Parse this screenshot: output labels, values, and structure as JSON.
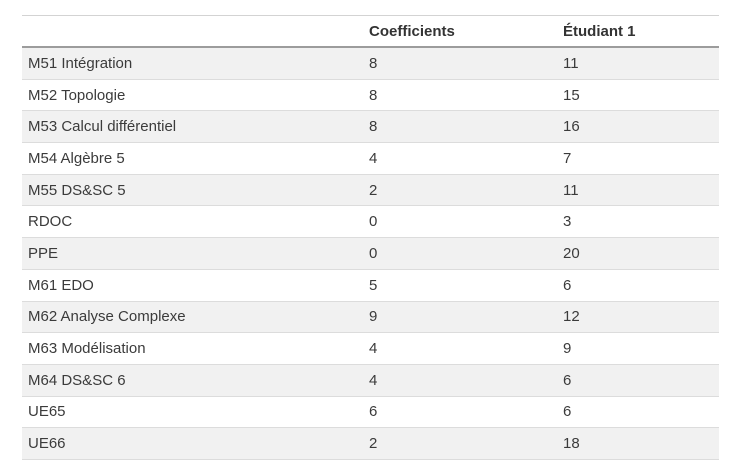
{
  "table": {
    "header": {
      "subject": "",
      "coefficients": "Coefficients",
      "etudiant1": "Étudiant 1"
    },
    "rows": [
      {
        "subject": "M51 Intégration",
        "coefficients": "8",
        "etudiant1": "11"
      },
      {
        "subject": "M52 Topologie",
        "coefficients": "8",
        "etudiant1": "15"
      },
      {
        "subject": "M53 Calcul différentiel",
        "coefficients": "8",
        "etudiant1": "16"
      },
      {
        "subject": "M54 Algèbre 5",
        "coefficients": "4",
        "etudiant1": "7"
      },
      {
        "subject": "M55 DS&SC 5",
        "coefficients": "2",
        "etudiant1": "11"
      },
      {
        "subject": "RDOC",
        "coefficients": "0",
        "etudiant1": "3"
      },
      {
        "subject": "PPE",
        "coefficients": "0",
        "etudiant1": "20"
      },
      {
        "subject": "M61 EDO",
        "coefficients": "5",
        "etudiant1": "6"
      },
      {
        "subject": "M62 Analyse Complexe",
        "coefficients": "9",
        "etudiant1": "12"
      },
      {
        "subject": "M63 Modélisation",
        "coefficients": "4",
        "etudiant1": "9"
      },
      {
        "subject": "M64 DS&SC 6",
        "coefficients": "4",
        "etudiant1": "6"
      },
      {
        "subject": "UE65",
        "coefficients": "6",
        "etudiant1": "6"
      },
      {
        "subject": "UE66",
        "coefficients": "2",
        "etudiant1": "18"
      }
    ],
    "colors": {
      "stripe_background": "#f1f1f1",
      "row_border": "#dcdcdc",
      "header_underline": "#9c9c9c",
      "top_border": "#d3d3d3",
      "text": "#3b3b3b"
    }
  }
}
